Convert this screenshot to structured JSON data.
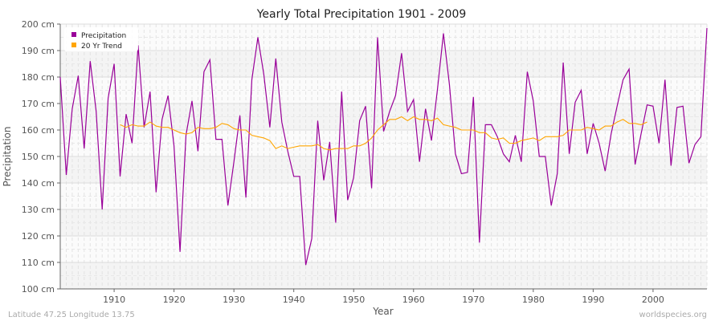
{
  "chart_data": {
    "type": "line",
    "title": "Yearly Total Precipitation 1901 - 2009",
    "xlabel": "Year",
    "ylabel": "Precipitation",
    "xlim": [
      1901,
      2009
    ],
    "ylim": [
      100,
      200
    ],
    "x_ticks": [
      1910,
      1920,
      1930,
      1940,
      1950,
      1960,
      1970,
      1980,
      1990,
      2000
    ],
    "y_ticks": [
      100,
      110,
      120,
      130,
      140,
      150,
      160,
      170,
      180,
      190,
      200
    ],
    "y_tick_labels": [
      "100 cm",
      "110 cm",
      "120 cm",
      "130 cm",
      "140 cm",
      "150 cm",
      "160 cm",
      "170 cm",
      "180 cm",
      "190 cm",
      "200 cm"
    ],
    "grid": true,
    "legend_placement": "top-left",
    "x": [
      1901,
      1902,
      1903,
      1904,
      1905,
      1906,
      1907,
      1908,
      1909,
      1910,
      1911,
      1912,
      1913,
      1914,
      1915,
      1916,
      1917,
      1918,
      1919,
      1920,
      1921,
      1922,
      1923,
      1924,
      1925,
      1926,
      1927,
      1928,
      1929,
      1930,
      1931,
      1932,
      1933,
      1934,
      1935,
      1936,
      1937,
      1938,
      1939,
      1940,
      1941,
      1942,
      1943,
      1944,
      1945,
      1946,
      1947,
      1948,
      1949,
      1950,
      1951,
      1952,
      1953,
      1954,
      1955,
      1956,
      1957,
      1958,
      1959,
      1960,
      1961,
      1962,
      1963,
      1964,
      1965,
      1966,
      1967,
      1968,
      1969,
      1970,
      1971,
      1972,
      1973,
      1974,
      1975,
      1976,
      1977,
      1978,
      1979,
      1980,
      1981,
      1982,
      1983,
      1984,
      1985,
      1986,
      1987,
      1988,
      1989,
      1990,
      1991,
      1992,
      1993,
      1994,
      1995,
      1996,
      1997,
      1998,
      1999,
      2000,
      2001,
      2002,
      2003,
      2004,
      2005,
      2006,
      2007,
      2008,
      2009
    ],
    "series": [
      {
        "name": "Precipitation",
        "color": "#990099",
        "values": [
          180,
          143,
          168,
          180.5,
          153,
          186,
          167,
          130,
          172,
          185,
          142.5,
          166,
          155,
          192,
          161,
          174.5,
          136.5,
          164,
          173,
          154,
          114,
          158,
          171,
          152,
          182,
          186.5,
          156.5,
          156.5,
          131.5,
          148,
          165.5,
          134.5,
          179,
          195,
          181,
          161,
          187,
          163,
          152,
          142.5,
          142.5,
          109,
          119,
          163.5,
          141,
          155.5,
          125,
          174.5,
          133.5,
          142,
          163.5,
          169,
          138,
          195,
          159.5,
          167,
          173,
          189,
          167,
          171.5,
          148,
          168,
          156,
          175.5,
          196.5,
          177,
          151,
          143.5,
          144,
          172.5,
          117.5,
          162,
          162,
          157.5,
          151,
          148,
          158,
          148,
          182,
          171,
          150,
          150,
          131.5,
          143.5,
          185.5,
          151,
          170.5,
          175,
          151,
          162.5,
          155,
          144.5,
          158.5,
          169,
          179,
          183,
          147,
          158.5,
          169.5,
          169,
          155,
          179,
          146.5,
          168.5,
          169,
          147.5,
          154.5,
          157.5,
          198.5
        ]
      },
      {
        "name": "20 Yr Trend",
        "color": "#ffa500",
        "values": [
          null,
          null,
          null,
          null,
          null,
          null,
          null,
          null,
          null,
          null,
          162,
          161,
          162,
          161.5,
          161.5,
          163,
          161.5,
          161,
          161,
          160,
          159,
          158.5,
          159,
          161,
          160.5,
          160.5,
          161,
          162.5,
          162,
          160.5,
          160,
          160,
          158,
          157.5,
          157,
          156,
          153,
          154,
          153,
          153.5,
          154,
          154,
          154,
          154.5,
          153,
          152.5,
          153,
          153,
          153,
          154,
          154,
          155,
          157,
          160,
          162,
          164,
          164,
          165,
          163.5,
          165,
          164,
          164,
          163.5,
          164.5,
          162,
          161.5,
          161,
          160,
          160,
          160,
          159,
          159,
          157,
          156.5,
          157,
          155,
          155,
          156,
          156.5,
          157,
          156,
          157.5,
          157.5,
          157.5,
          158,
          160,
          160,
          160,
          161,
          160.5,
          160,
          161.5,
          161.5,
          163,
          164,
          162.5,
          162.5,
          162,
          163,
          null,
          null,
          null,
          null,
          null,
          null,
          null,
          null,
          null,
          null
        ]
      }
    ]
  },
  "footer": {
    "location": "Latitude 47.25 Longitude 13.75",
    "source": "worldspecies.org"
  }
}
